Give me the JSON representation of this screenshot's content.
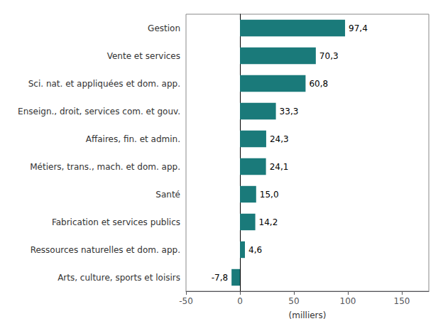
{
  "chart_data": {
    "type": "bar",
    "orientation": "horizontal",
    "categories": [
      "Arts, culture, sports et loisirs",
      "Ressources naturelles et dom. app.",
      "Fabrication et services publics",
      "Santé",
      "Métiers, trans., mach. et dom. app.",
      "Affaires, fin. et admin.",
      "Enseign., droit, services com. et gouv.",
      "Sci. nat. et appliquées et dom. app.",
      "Vente et services",
      "Gestion"
    ],
    "values": [
      -7.8,
      4.6,
      14.2,
      15.0,
      24.1,
      24.3,
      33.3,
      60.8,
      70.3,
      97.4
    ],
    "value_labels": [
      "-7,8",
      "4,6",
      "14,2",
      "15,0",
      "24,1",
      "24,3",
      "33,3",
      "60,8",
      "70,3",
      "97,4"
    ],
    "data_labels": true,
    "color": "#1a7a7a",
    "xlabel": "(milliers)",
    "xlim": [
      -50,
      175
    ],
    "xticks": [
      -50,
      0,
      50,
      100,
      150
    ],
    "grid": false
  }
}
